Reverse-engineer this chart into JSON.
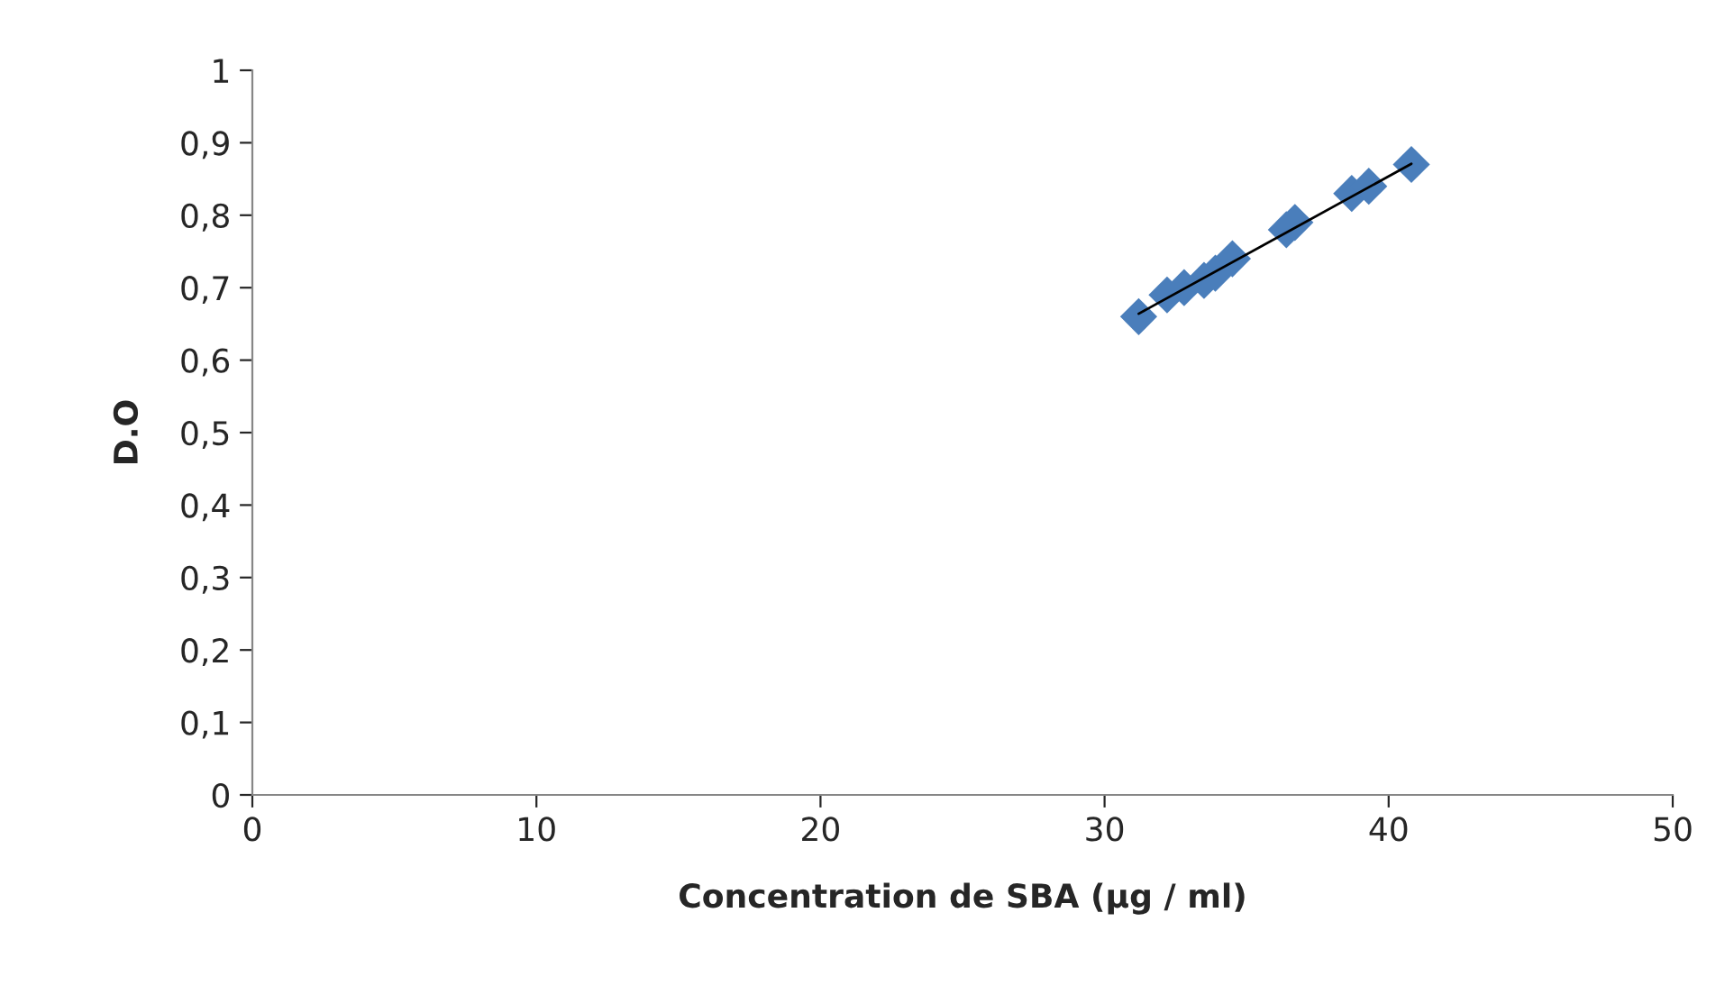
{
  "chart_data": {
    "type": "scatter",
    "xlabel": "Concentration de SBA (µg / ml)",
    "ylabel": "D.O",
    "xlim": [
      0,
      50
    ],
    "xticks": [
      0,
      10,
      20,
      30,
      40,
      50
    ],
    "ylim": [
      0,
      1
    ],
    "yticks": [
      0,
      {
        "value": 0.1,
        "label": "0,1"
      },
      {
        "value": 0.2,
        "label": "0,2"
      },
      {
        "value": 0.3,
        "label": "0,3"
      },
      {
        "value": 0.4,
        "label": "0,4"
      },
      {
        "value": 0.5,
        "label": "0,5"
      },
      {
        "value": 0.6,
        "label": "0,6"
      },
      {
        "value": 0.7,
        "label": "0,7"
      },
      {
        "value": 0.8,
        "label": "0,8"
      },
      {
        "value": 0.9,
        "label": "0,9"
      },
      1
    ],
    "grid": false,
    "legend": false,
    "series": [
      {
        "marker": "diamond",
        "color": "#4a7ebb",
        "x": [
          31.2,
          32.2,
          32.8,
          33.5,
          33.9,
          34.5,
          36.4,
          36.7,
          38.7,
          39.3,
          40.8
        ],
        "values": [
          0.66,
          0.69,
          0.7,
          0.71,
          0.72,
          0.74,
          0.78,
          0.79,
          0.83,
          0.84,
          0.87
        ]
      },
      {
        "type": "line",
        "marker": "none",
        "color": "#000000",
        "x": [
          31.2,
          40.8
        ],
        "values": [
          0.664,
          0.871
        ]
      }
    ]
  }
}
